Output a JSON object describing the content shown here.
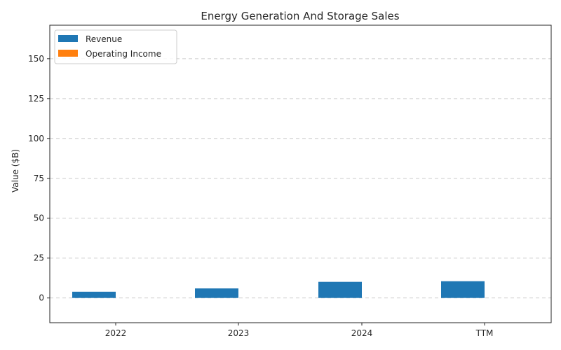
{
  "chart_data": {
    "type": "bar",
    "title": "Energy Generation And Storage Sales",
    "xlabel": "",
    "ylabel": "Value ($B)",
    "categories": [
      "2022",
      "2023",
      "2024",
      "TTM"
    ],
    "series": [
      {
        "name": "Revenue",
        "values": [
          3.9,
          6.0,
          10.1,
          10.5
        ],
        "color": "#1f77b4"
      },
      {
        "name": "Operating Income",
        "values": [
          0.0,
          0.0,
          0.0,
          0.0
        ],
        "color": "#ff7f0e"
      }
    ],
    "ylim": [
      -15.5,
      171
    ],
    "yticks": [
      0,
      25,
      50,
      75,
      100,
      125,
      150
    ],
    "grid": true,
    "legend_position": "top-left"
  }
}
